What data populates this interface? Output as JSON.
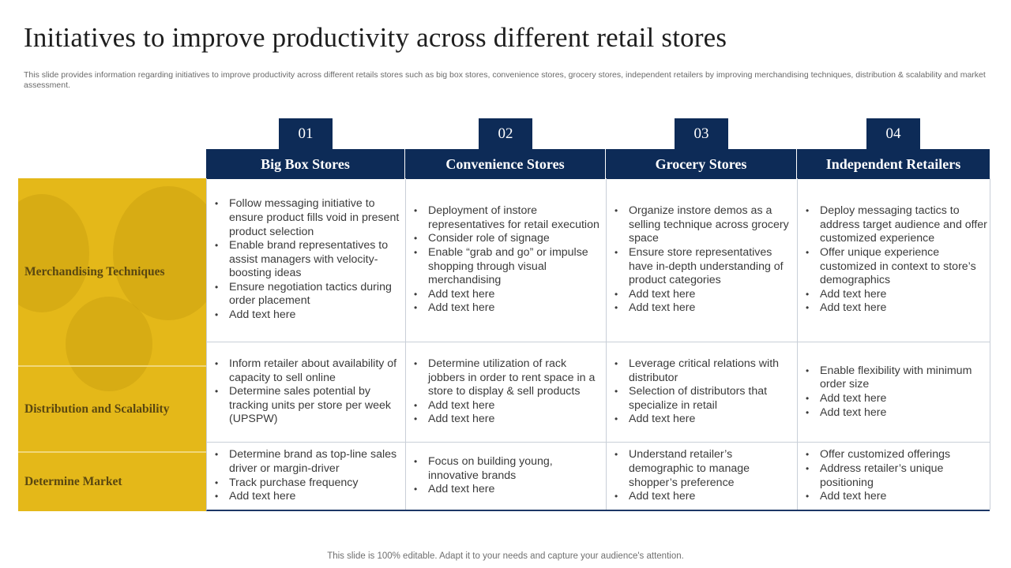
{
  "title": "Initiatives to improve productivity across different retail stores",
  "subtitle": "This slide provides information regarding initiatives to improve productivity across different retails stores such as big box stores, convenience stores, grocery stores, independent retailers by improving merchandising techniques, distribution & scalability and market assessment.",
  "columns": [
    {
      "number": "01",
      "label": "Big Box Stores"
    },
    {
      "number": "02",
      "label": "Convenience Stores"
    },
    {
      "number": "03",
      "label": "Grocery Stores"
    },
    {
      "number": "04",
      "label": "Independent Retailers"
    }
  ],
  "rows": [
    {
      "label": "Merchandising Techniques",
      "cells": [
        [
          "Follow messaging initiative to ensure product fills void in present product selection",
          "Enable brand representatives to assist managers with velocity-boosting ideas",
          "Ensure negotiation tactics during order placement",
          "Add text here"
        ],
        [
          "Deployment of instore representatives for retail execution",
          "Consider role of signage",
          "Enable “grab and go” or impulse shopping through visual merchandising",
          "Add text here",
          "Add text here"
        ],
        [
          "Organize instore demos as a selling technique across grocery space",
          "Ensure store representatives have in-depth understanding of product categories",
          "Add text here",
          "Add text here"
        ],
        [
          "Deploy messaging tactics to address target audience and offer customized experience",
          "Offer unique experience customized in context to store’s demographics",
          "Add text here",
          "Add text here"
        ]
      ]
    },
    {
      "label": "Distribution and Scalability",
      "cells": [
        [
          "Inform retailer about availability of capacity to sell online",
          "Determine sales potential by tracking units per store per week (UPSPW)"
        ],
        [
          "Determine utilization of rack jobbers in order to rent space in a store to display & sell products",
          "Add text here",
          "Add text here"
        ],
        [
          "Leverage critical relations with distributor",
          "Selection of distributors that specialize in retail",
          "Add text here"
        ],
        [
          "Enable flexibility with minimum order size",
          "Add text here",
          "Add text here"
        ]
      ]
    },
    {
      "label": "Determine Market",
      "cells": [
        [
          "Determine brand as top-line sales driver or margin-driver",
          "Track purchase frequency",
          "Add text here"
        ],
        [
          "Focus on building young, innovative brands",
          "Add text here"
        ],
        [
          "Understand retailer’s demographic to manage shopper’s preference",
          "Add text here"
        ],
        [
          "Offer customized offerings",
          "Address retailer’s unique positioning",
          "Add text here"
        ]
      ]
    }
  ],
  "footer": "This slide is 100% editable. Adapt it to your needs and capture your audience's attention.",
  "colors": {
    "header": "#0d2b57",
    "accent": "#e4b819"
  }
}
